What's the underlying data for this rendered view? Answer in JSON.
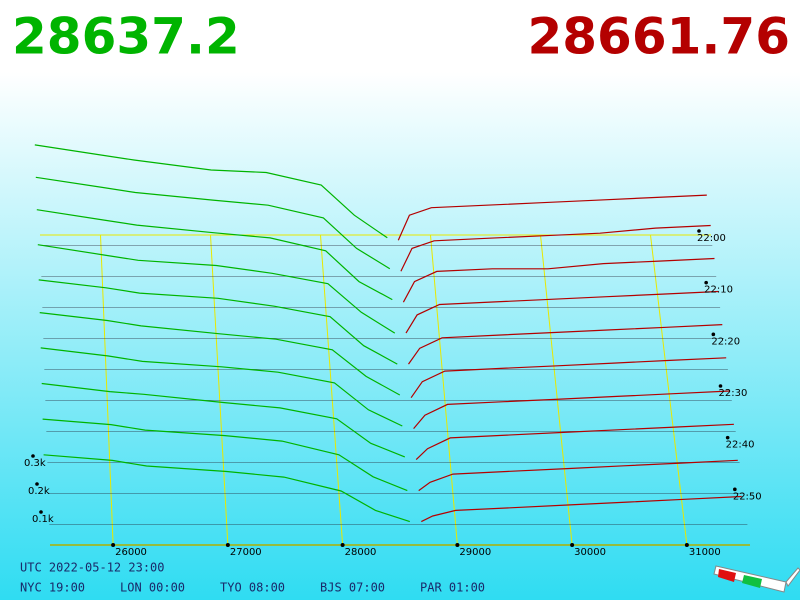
{
  "header": {
    "bid": 28637.2,
    "ask": 28661.76
  },
  "chart_data": {
    "type": "depth3d",
    "bid_color": "#00b400",
    "ask_color": "#b40000",
    "grid": true,
    "bid_prices": [
      25400,
      26000,
      26300,
      27000,
      27500,
      28000,
      28300,
      28600
    ],
    "ask_prices": [
      28700,
      28800,
      29000,
      29500,
      30000,
      30500,
      31000,
      31500
    ],
    "xlim": [
      25450,
      31550
    ],
    "xticks": [
      26000,
      27000,
      28000,
      29000,
      30000,
      31000
    ],
    "ylim": [
      0,
      0.4
    ],
    "yticks": [
      {
        "value": 0.1,
        "label": "0.1k"
      },
      {
        "value": 0.2,
        "label": "0.2k"
      },
      {
        "value": 0.3,
        "label": "0.3k"
      }
    ],
    "zlim": [
      1320,
      1380
    ],
    "zticks": [
      {
        "value": 1320,
        "label": "22:00"
      },
      {
        "value": 1330,
        "label": "22:10"
      },
      {
        "value": 1340,
        "label": "22:20"
      },
      {
        "value": 1350,
        "label": "22:30"
      },
      {
        "value": 1360,
        "label": "22:40"
      },
      {
        "value": 1370,
        "label": "22:50"
      }
    ],
    "snapshots": [
      {
        "t": 1322,
        "bids": [
          0.4,
          0.36,
          0.34,
          0.3,
          0.29,
          0.24,
          0.12,
          0.03
        ],
        "asks": [
          0.02,
          0.12,
          0.15,
          0.16,
          0.17,
          0.18,
          0.19,
          0.2
        ]
      },
      {
        "t": 1328,
        "bids": [
          0.39,
          0.35,
          0.33,
          0.3,
          0.28,
          0.23,
          0.11,
          0.03
        ],
        "asks": [
          0.02,
          0.11,
          0.14,
          0.15,
          0.16,
          0.17,
          0.19,
          0.2
        ]
      },
      {
        "t": 1334,
        "bids": [
          0.38,
          0.34,
          0.32,
          0.29,
          0.27,
          0.22,
          0.1,
          0.03
        ],
        "asks": [
          0.02,
          0.1,
          0.14,
          0.15,
          0.15,
          0.17,
          0.18,
          0.19
        ]
      },
      {
        "t": 1340,
        "bids": [
          0.36,
          0.32,
          0.3,
          0.28,
          0.25,
          0.21,
          0.1,
          0.02
        ],
        "asks": [
          0.02,
          0.09,
          0.13,
          0.14,
          0.15,
          0.16,
          0.17,
          0.18
        ]
      },
      {
        "t": 1346,
        "bids": [
          0.34,
          0.31,
          0.29,
          0.27,
          0.24,
          0.2,
          0.09,
          0.02
        ],
        "asks": [
          0.02,
          0.08,
          0.12,
          0.13,
          0.14,
          0.15,
          0.16,
          0.17
        ]
      },
      {
        "t": 1352,
        "bids": [
          0.33,
          0.3,
          0.28,
          0.25,
          0.23,
          0.19,
          0.09,
          0.02
        ],
        "asks": [
          0.01,
          0.07,
          0.11,
          0.12,
          0.13,
          0.14,
          0.15,
          0.16
        ]
      },
      {
        "t": 1358,
        "bids": [
          0.31,
          0.28,
          0.26,
          0.24,
          0.22,
          0.18,
          0.08,
          0.02
        ],
        "asks": [
          0.01,
          0.06,
          0.1,
          0.11,
          0.12,
          0.13,
          0.14,
          0.15
        ]
      },
      {
        "t": 1364,
        "bids": [
          0.29,
          0.26,
          0.25,
          0.22,
          0.2,
          0.16,
          0.07,
          0.02
        ],
        "asks": [
          0.01,
          0.05,
          0.09,
          0.1,
          0.11,
          0.12,
          0.13,
          0.14
        ]
      },
      {
        "t": 1370,
        "bids": [
          0.27,
          0.25,
          0.23,
          0.21,
          0.19,
          0.14,
          0.06,
          0.01
        ],
        "asks": [
          0.01,
          0.04,
          0.07,
          0.08,
          0.09,
          0.1,
          0.11,
          0.12
        ]
      },
      {
        "t": 1376,
        "bids": [
          0.25,
          0.23,
          0.21,
          0.19,
          0.17,
          0.12,
          0.05,
          0.01
        ],
        "asks": [
          0.01,
          0.03,
          0.05,
          0.06,
          0.07,
          0.08,
          0.09,
          0.1
        ]
      }
    ]
  },
  "footer": {
    "utc": "UTC 2022-05-12 23:00",
    "zones": [
      "NYC 19:00",
      "LON 00:00",
      "TYO 08:00",
      "BJS 07:00",
      "PAR 01:00"
    ]
  }
}
